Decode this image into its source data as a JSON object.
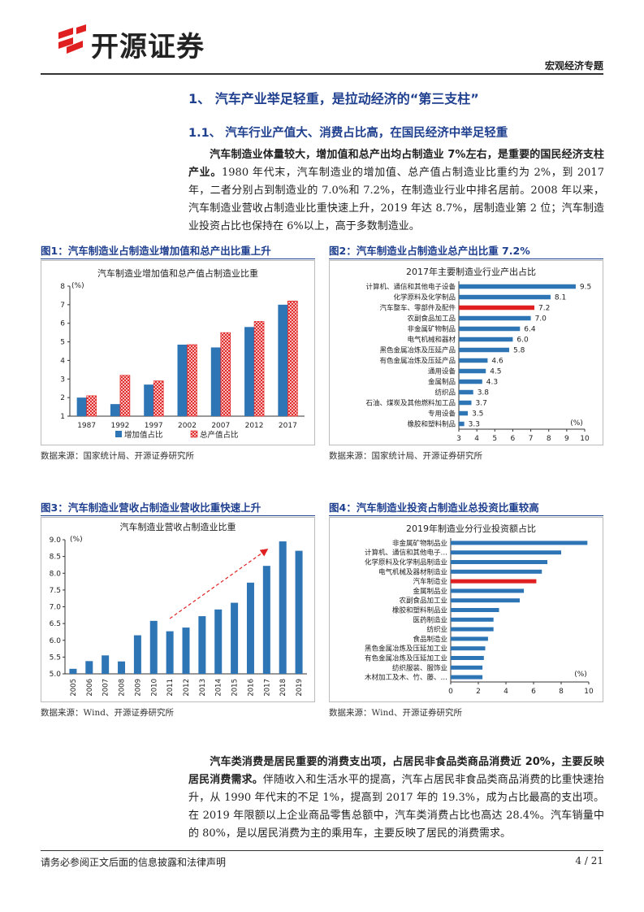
{
  "header": {
    "company": "开源证券",
    "doc_type": "宏观经济专题"
  },
  "section": {
    "h1": "1、 汽车产业举足轻重，是拉动经济的“第三支柱”",
    "h2": "1.1、 汽车行业产值大、消费占比高，在国民经济中举足轻重"
  },
  "para1": {
    "bold": "汽车制造业体量较大，增加值和总产出均占制造业 7%左右，是重要的国民经济支柱产业。",
    "text": "1980 年代末，汽车制造业的增加值、总产值占制造业比重约为 2%，到 2017 年，二者分别占到制造业的 7.0%和 7.2%，在制造业行业中排名居前。2008 年以来，汽车制造业营收占制造业比重快速上升，2019 年达 8.7%，居制造业第 2 位；汽车制造业投资占比也保持在 6%以上，高于多数制造业。"
  },
  "para2": {
    "bold": "汽车类消费是居民重要的消费支出项，占居民非食品类商品消费近 20%，主要反映居民消费需求。",
    "text": "伴随收入和生活水平的提高，汽车占居民非食品类商品消费的比重快速抬升，从 1990 年代末的不足 1%，提高到 2017 年的 19.3%，成为占比最高的支出项。在 2019 年限额以上企业商品零售总额中，汽车类消费占比也高达 28.4%。汽车销量中的 80%，是以居民消费为主的乘用车，主要反映了居民的消费需求。"
  },
  "figures": {
    "fig1_title": "图1：汽车制造业占制造业增加值和总产出比重上升",
    "fig2_title": "图2：汽车制造业占制造业总产出比重 7.2%",
    "fig3_title": "图3：汽车制造业营收占制造业营收比重快速上升",
    "fig4_title": "图4：汽车制造业投资占制造业总投资比重较高",
    "src1": "数据来源：国家统计局、开源证券研究所",
    "src2": "数据来源：国家统计局、开源证券研究所",
    "src3": "数据来源：Wind、开源证券研究所",
    "src4": "数据来源：Wind、开源证券研究所"
  },
  "footer": {
    "disclaimer": "请务必参阅正文后面的信息披露和法律声明",
    "page": "4 / 21"
  },
  "colors": {
    "blue": "#2e75b6",
    "red": "#e02020",
    "title_blue": "#1f3f8f"
  },
  "chart_data": [
    {
      "type": "bar",
      "title": "汽车制造业增加值和总产值占制造业比重",
      "unit": "(%)",
      "categories": [
        "1987",
        "1992",
        "1997",
        "2002",
        "2007",
        "2012",
        "2017"
      ],
      "series": [
        {
          "name": "增加值占比",
          "values": [
            2.0,
            1.65,
            2.7,
            4.85,
            4.7,
            5.8,
            7.0
          ]
        },
        {
          "name": "总产值占比",
          "values": [
            2.1,
            3.2,
            2.9,
            4.85,
            5.5,
            6.1,
            7.2
          ]
        }
      ],
      "ylim": [
        1,
        8
      ],
      "yticks": [
        1,
        2,
        3,
        4,
        5,
        6,
        7,
        8
      ],
      "legend": "bottom"
    },
    {
      "type": "bar",
      "orientation": "horizontal",
      "title": "2017年主要制造业行业产出占比",
      "unit": "(%)",
      "categories": [
        "计算机、通信和其他电子设备",
        "化学原料及化学制品",
        "汽车整车、零部件及配件",
        "农副食品加工品",
        "非金属矿物制品",
        "电气机械和器材",
        "黑色金属冶炼及压延产品",
        "有色金属冶炼及压延产品",
        "通用设备",
        "金属制品",
        "纺织品",
        "石油、煤炭及其他燃料加工品",
        "专用设备",
        "橡胶和塑料制品"
      ],
      "values": [
        9.5,
        8.1,
        7.2,
        7.0,
        6.4,
        6.0,
        5.8,
        4.6,
        4.5,
        4.3,
        3.8,
        3.7,
        3.5,
        3.3
      ],
      "value_labels": [
        "9.5",
        "8.1",
        "7.2",
        "7.0",
        "6.4",
        "6.0",
        "5.8",
        "4.6",
        "4.5",
        "4.3",
        "3.8",
        "3.7",
        "3.5",
        "3.3"
      ],
      "highlight_index": 2,
      "xlim": [
        3,
        10
      ],
      "xticks": [
        3,
        4,
        5,
        6,
        7,
        8,
        9,
        10
      ]
    },
    {
      "type": "bar",
      "title": "汽车制造业营收占制造业比重",
      "unit": "(%)",
      "categories": [
        "2005",
        "2006",
        "2007",
        "2008",
        "2009",
        "2010",
        "2011",
        "2012",
        "2013",
        "2014",
        "2015",
        "2016",
        "2017",
        "2018",
        "2019"
      ],
      "values": [
        5.15,
        5.38,
        5.55,
        5.37,
        6.15,
        6.58,
        6.27,
        6.38,
        6.72,
        6.92,
        7.12,
        7.72,
        8.22,
        8.95,
        8.67
      ],
      "ylim": [
        5.0,
        9.0
      ],
      "yticks": [
        "5.0",
        "5.5",
        "6.0",
        "6.5",
        "7.0",
        "7.5",
        "8.0",
        "8.5",
        "9.0"
      ]
    },
    {
      "type": "bar",
      "orientation": "horizontal",
      "title": "2019年制造业分行业投资额占比",
      "unit": "(%)",
      "categories": [
        "非金属矿物制品业",
        "计算机、通信和其他电子…",
        "化学原料及化学制品制造业",
        "电气机械及器材制造业",
        "汽车制造业",
        "金属制品业",
        "农副食品加工业",
        "橡胶和塑料制品业",
        "医药制造业",
        "纺织业",
        "食品制造业",
        "黑色金属冶炼及压延加工业",
        "有色金属冶炼及压延加工业",
        "纺织服装、服饰业",
        "木材加工及木、竹、藤、…"
      ],
      "values": [
        9.9,
        8.0,
        7.0,
        6.6,
        6.2,
        5.3,
        5.0,
        3.5,
        3.1,
        3.1,
        2.7,
        2.5,
        2.4,
        2.3,
        2.3
      ],
      "highlight_index": 4,
      "xlim": [
        0,
        10
      ],
      "xticks": [
        0,
        2,
        4,
        6,
        8,
        10
      ]
    }
  ]
}
